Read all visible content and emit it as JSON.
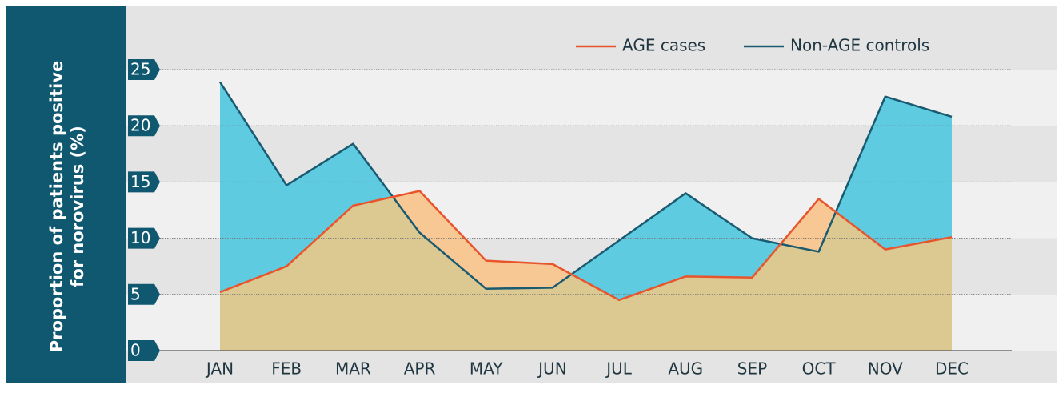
{
  "chart_data": {
    "type": "area",
    "ylabel": [
      "Proportion of patients positive",
      "for norovirus (%)"
    ],
    "categories": [
      "JAN",
      "FEB",
      "MAR",
      "APR",
      "MAY",
      "JUN",
      "JUL",
      "AUG",
      "SEP",
      "OCT",
      "NOV",
      "DEC"
    ],
    "series": [
      {
        "name": "AGE cases",
        "color": "#e8552d",
        "fill": "#f8c894",
        "values": [
          5.2,
          7.5,
          12.9,
          14.2,
          8.0,
          7.7,
          4.5,
          6.6,
          6.5,
          13.5,
          9.0,
          10.1
        ]
      },
      {
        "name": "Non-AGE controls",
        "color": "#1a5a70",
        "fill": "#5ecbe0",
        "values": [
          23.9,
          14.7,
          18.4,
          10.5,
          5.5,
          5.6,
          9.8,
          14.0,
          10.0,
          8.8,
          22.6,
          20.8
        ]
      }
    ],
    "overlap_color": "#dcc891",
    "ylim": [
      0,
      25
    ],
    "yticks": [
      0,
      5,
      10,
      15,
      20,
      25
    ],
    "grid": true
  }
}
